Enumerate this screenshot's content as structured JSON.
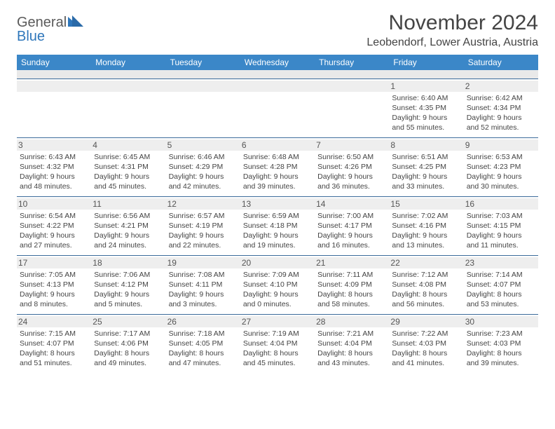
{
  "logo": {
    "line1": "General",
    "line2": "Blue"
  },
  "title": "November 2024",
  "location": "Leobendorf, Lower Austria, Austria",
  "colors": {
    "header_bg": "#3b87c8",
    "header_text": "#ffffff",
    "row_border": "#3b6b9a",
    "daynum_bg": "#eeeeee",
    "blank_bg": "#e9e9e9",
    "logo_gray": "#5a5a5a",
    "logo_blue": "#2f77bb",
    "body_text": "#444444"
  },
  "day_headers": [
    "Sunday",
    "Monday",
    "Tuesday",
    "Wednesday",
    "Thursday",
    "Friday",
    "Saturday"
  ],
  "weeks": [
    [
      {
        "empty": true
      },
      {
        "empty": true
      },
      {
        "empty": true
      },
      {
        "empty": true
      },
      {
        "empty": true
      },
      {
        "num": "1",
        "sunrise": "Sunrise: 6:40 AM",
        "sunset": "Sunset: 4:35 PM",
        "daylight": "Daylight: 9 hours and 55 minutes."
      },
      {
        "num": "2",
        "sunrise": "Sunrise: 6:42 AM",
        "sunset": "Sunset: 4:34 PM",
        "daylight": "Daylight: 9 hours and 52 minutes."
      }
    ],
    [
      {
        "num": "3",
        "sunrise": "Sunrise: 6:43 AM",
        "sunset": "Sunset: 4:32 PM",
        "daylight": "Daylight: 9 hours and 48 minutes."
      },
      {
        "num": "4",
        "sunrise": "Sunrise: 6:45 AM",
        "sunset": "Sunset: 4:31 PM",
        "daylight": "Daylight: 9 hours and 45 minutes."
      },
      {
        "num": "5",
        "sunrise": "Sunrise: 6:46 AM",
        "sunset": "Sunset: 4:29 PM",
        "daylight": "Daylight: 9 hours and 42 minutes."
      },
      {
        "num": "6",
        "sunrise": "Sunrise: 6:48 AM",
        "sunset": "Sunset: 4:28 PM",
        "daylight": "Daylight: 9 hours and 39 minutes."
      },
      {
        "num": "7",
        "sunrise": "Sunrise: 6:50 AM",
        "sunset": "Sunset: 4:26 PM",
        "daylight": "Daylight: 9 hours and 36 minutes."
      },
      {
        "num": "8",
        "sunrise": "Sunrise: 6:51 AM",
        "sunset": "Sunset: 4:25 PM",
        "daylight": "Daylight: 9 hours and 33 minutes."
      },
      {
        "num": "9",
        "sunrise": "Sunrise: 6:53 AM",
        "sunset": "Sunset: 4:23 PM",
        "daylight": "Daylight: 9 hours and 30 minutes."
      }
    ],
    [
      {
        "num": "10",
        "sunrise": "Sunrise: 6:54 AM",
        "sunset": "Sunset: 4:22 PM",
        "daylight": "Daylight: 9 hours and 27 minutes."
      },
      {
        "num": "11",
        "sunrise": "Sunrise: 6:56 AM",
        "sunset": "Sunset: 4:21 PM",
        "daylight": "Daylight: 9 hours and 24 minutes."
      },
      {
        "num": "12",
        "sunrise": "Sunrise: 6:57 AM",
        "sunset": "Sunset: 4:19 PM",
        "daylight": "Daylight: 9 hours and 22 minutes."
      },
      {
        "num": "13",
        "sunrise": "Sunrise: 6:59 AM",
        "sunset": "Sunset: 4:18 PM",
        "daylight": "Daylight: 9 hours and 19 minutes."
      },
      {
        "num": "14",
        "sunrise": "Sunrise: 7:00 AM",
        "sunset": "Sunset: 4:17 PM",
        "daylight": "Daylight: 9 hours and 16 minutes."
      },
      {
        "num": "15",
        "sunrise": "Sunrise: 7:02 AM",
        "sunset": "Sunset: 4:16 PM",
        "daylight": "Daylight: 9 hours and 13 minutes."
      },
      {
        "num": "16",
        "sunrise": "Sunrise: 7:03 AM",
        "sunset": "Sunset: 4:15 PM",
        "daylight": "Daylight: 9 hours and 11 minutes."
      }
    ],
    [
      {
        "num": "17",
        "sunrise": "Sunrise: 7:05 AM",
        "sunset": "Sunset: 4:13 PM",
        "daylight": "Daylight: 9 hours and 8 minutes."
      },
      {
        "num": "18",
        "sunrise": "Sunrise: 7:06 AM",
        "sunset": "Sunset: 4:12 PM",
        "daylight": "Daylight: 9 hours and 5 minutes."
      },
      {
        "num": "19",
        "sunrise": "Sunrise: 7:08 AM",
        "sunset": "Sunset: 4:11 PM",
        "daylight": "Daylight: 9 hours and 3 minutes."
      },
      {
        "num": "20",
        "sunrise": "Sunrise: 7:09 AM",
        "sunset": "Sunset: 4:10 PM",
        "daylight": "Daylight: 9 hours and 0 minutes."
      },
      {
        "num": "21",
        "sunrise": "Sunrise: 7:11 AM",
        "sunset": "Sunset: 4:09 PM",
        "daylight": "Daylight: 8 hours and 58 minutes."
      },
      {
        "num": "22",
        "sunrise": "Sunrise: 7:12 AM",
        "sunset": "Sunset: 4:08 PM",
        "daylight": "Daylight: 8 hours and 56 minutes."
      },
      {
        "num": "23",
        "sunrise": "Sunrise: 7:14 AM",
        "sunset": "Sunset: 4:07 PM",
        "daylight": "Daylight: 8 hours and 53 minutes."
      }
    ],
    [
      {
        "num": "24",
        "sunrise": "Sunrise: 7:15 AM",
        "sunset": "Sunset: 4:07 PM",
        "daylight": "Daylight: 8 hours and 51 minutes."
      },
      {
        "num": "25",
        "sunrise": "Sunrise: 7:17 AM",
        "sunset": "Sunset: 4:06 PM",
        "daylight": "Daylight: 8 hours and 49 minutes."
      },
      {
        "num": "26",
        "sunrise": "Sunrise: 7:18 AM",
        "sunset": "Sunset: 4:05 PM",
        "daylight": "Daylight: 8 hours and 47 minutes."
      },
      {
        "num": "27",
        "sunrise": "Sunrise: 7:19 AM",
        "sunset": "Sunset: 4:04 PM",
        "daylight": "Daylight: 8 hours and 45 minutes."
      },
      {
        "num": "28",
        "sunrise": "Sunrise: 7:21 AM",
        "sunset": "Sunset: 4:04 PM",
        "daylight": "Daylight: 8 hours and 43 minutes."
      },
      {
        "num": "29",
        "sunrise": "Sunrise: 7:22 AM",
        "sunset": "Sunset: 4:03 PM",
        "daylight": "Daylight: 8 hours and 41 minutes."
      },
      {
        "num": "30",
        "sunrise": "Sunrise: 7:23 AM",
        "sunset": "Sunset: 4:03 PM",
        "daylight": "Daylight: 8 hours and 39 minutes."
      }
    ]
  ]
}
